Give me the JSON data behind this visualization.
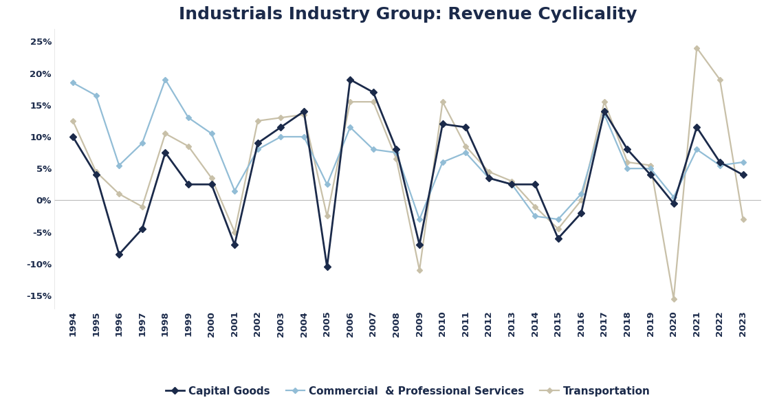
{
  "title": "Industrials Industry Group: Revenue Cyclicality",
  "years": [
    1994,
    1995,
    1996,
    1997,
    1998,
    1999,
    2000,
    2001,
    2002,
    2003,
    2004,
    2005,
    2006,
    2007,
    2008,
    2009,
    2010,
    2011,
    2012,
    2013,
    2014,
    2015,
    2016,
    2017,
    2018,
    2019,
    2020,
    2021,
    2022,
    2023
  ],
  "capital_goods": [
    0.1,
    0.04,
    -0.085,
    -0.045,
    0.075,
    0.025,
    0.025,
    -0.07,
    0.09,
    0.115,
    0.14,
    -0.105,
    0.19,
    0.17,
    0.08,
    -0.07,
    0.12,
    0.115,
    0.035,
    0.025,
    0.025,
    -0.06,
    -0.02,
    0.14,
    0.08,
    0.04,
    -0.005,
    0.115,
    0.06,
    0.04
  ],
  "commercial_services": [
    0.185,
    0.165,
    0.055,
    0.09,
    0.19,
    0.13,
    0.105,
    0.015,
    0.08,
    0.1,
    0.1,
    0.025,
    0.115,
    0.08,
    0.075,
    -0.03,
    0.06,
    0.075,
    0.035,
    0.025,
    -0.025,
    -0.03,
    0.01,
    0.135,
    0.05,
    0.05,
    0.005,
    0.08,
    0.055,
    0.06
  ],
  "transportation": [
    0.125,
    0.045,
    0.01,
    -0.01,
    0.105,
    0.085,
    0.035,
    -0.05,
    0.125,
    0.13,
    0.135,
    -0.025,
    0.155,
    0.155,
    0.065,
    -0.11,
    0.155,
    0.085,
    0.045,
    0.03,
    -0.01,
    -0.045,
    0.0,
    0.155,
    0.06,
    0.055,
    -0.155,
    0.24,
    0.19,
    -0.03
  ],
  "capital_goods_color": "#1B2A4A",
  "commercial_services_color": "#92BDD6",
  "transportation_color": "#C8C0A8",
  "background_color": "#FFFFFF",
  "ylim": [
    -0.17,
    0.27
  ],
  "yticks": [
    -0.15,
    -0.1,
    -0.05,
    0.0,
    0.05,
    0.1,
    0.15,
    0.2,
    0.25
  ],
  "legend_labels": [
    "Capital Goods",
    "Commercial  & Professional Services",
    "Transportation"
  ],
  "title_fontsize": 18,
  "tick_fontsize": 9.5,
  "legend_fontsize": 11
}
